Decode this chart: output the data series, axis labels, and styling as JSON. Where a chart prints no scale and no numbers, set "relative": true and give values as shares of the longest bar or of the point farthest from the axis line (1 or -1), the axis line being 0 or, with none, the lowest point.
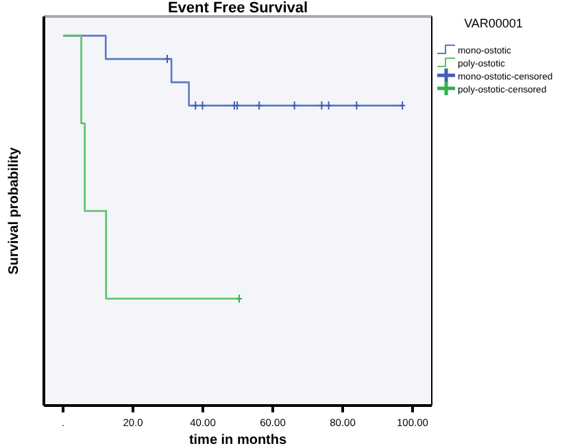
{
  "chart_data": {
    "type": "step",
    "title": "Event Free Survival",
    "xlabel": "time in months",
    "ylabel": "Survival probability",
    "legend_title": "VAR00001",
    "legend": "right",
    "relative": true,
    "grid": false,
    "xlim": [
      -5.5,
      105.5
    ],
    "xticks": [
      {
        "value": 0,
        "label": "."
      },
      {
        "value": 20,
        "label": "20.0"
      },
      {
        "value": 40,
        "label": "40.00"
      },
      {
        "value": 60,
        "label": "60.00"
      },
      {
        "value": 80,
        "label": "80.00"
      },
      {
        "value": 100,
        "label": "100.00"
      }
    ],
    "series": [
      {
        "name": "mono-ostotic",
        "type": "step",
        "color": "#5b78c4",
        "x": [
          0,
          12.2,
          31,
          36,
          97
        ],
        "values": [
          1,
          0.937,
          0.874,
          0.811,
          0.811
        ]
      },
      {
        "name": "poly-ostotic",
        "type": "step",
        "color": "#5cbf6a",
        "x": [
          0,
          5.2,
          6.2,
          12.3,
          50.6
        ],
        "values": [
          1,
          0.763,
          0.526,
          0.289,
          0.289
        ]
      },
      {
        "name": "mono-ostotic-censored",
        "type": "scatter",
        "marker": "cross",
        "color": "#3f5fb5",
        "x": [
          29.8,
          37.9,
          39.9,
          49,
          49.8,
          56.1,
          66.2,
          74,
          76,
          84,
          97.1
        ],
        "values": [
          0.937,
          0.811,
          0.811,
          0.811,
          0.811,
          0.811,
          0.811,
          0.811,
          0.811,
          0.811,
          0.811
        ]
      },
      {
        "name": "poly-ostotic-censored",
        "type": "scatter",
        "marker": "cross",
        "color": "#33b04a",
        "x": [
          50.4
        ],
        "values": [
          0.289
        ]
      }
    ]
  }
}
